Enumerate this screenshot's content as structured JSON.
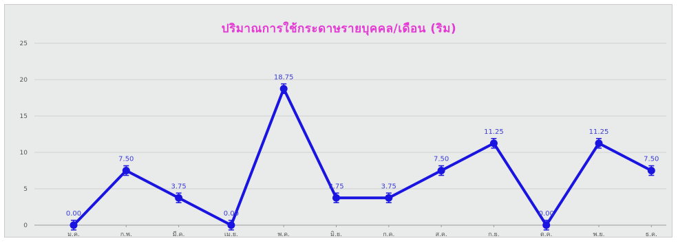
{
  "chart_data": {
    "type": "line",
    "title": "ปริมาณการใช้กระดาษรายบุคคล/เดือน (ริม)",
    "xlabel": "",
    "ylabel": "",
    "categories": [
      "ม.ค.",
      "ก.พ.",
      "มี.ค.",
      "เม.ย.",
      "พ.ค.",
      "มิ.ย.",
      "ก.ค.",
      "ส.ค.",
      "ก.ย.",
      "ต.ค.",
      "พ.ย.",
      "ธ.ค."
    ],
    "series": [
      {
        "values": [
          0.0,
          7.5,
          3.75,
          0.0,
          18.75,
          3.75,
          3.75,
          7.5,
          11.25,
          0.0,
          11.25,
          7.5
        ],
        "labels": [
          "0.00",
          "7.50",
          "3.75",
          "0.00",
          "18.75",
          "3.75",
          "3.75",
          "7.50",
          "11.25",
          "0.00",
          "11.25",
          "7.50"
        ],
        "color": "#1a14e0"
      }
    ],
    "yticks": [
      "0",
      "5",
      "10",
      "15",
      "20",
      "25"
    ],
    "ylim": [
      0,
      25
    ],
    "grid": true,
    "legend": "none",
    "colors": {
      "title": "#e23ad3",
      "line": "#1a14e0",
      "background": "#e9ebea"
    }
  }
}
